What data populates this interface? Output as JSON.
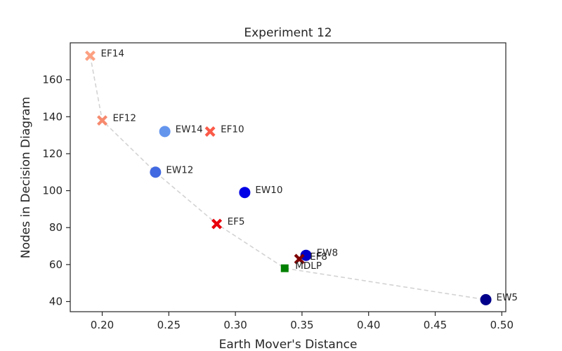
{
  "chart_data": {
    "type": "scatter",
    "title": "Experiment 12",
    "xlabel": "Earth Mover's Distance",
    "ylabel": "Nodes in Decision Diagram",
    "xlim": [
      0.176,
      0.503
    ],
    "ylim": [
      34.5,
      180
    ],
    "xticks": [
      0.2,
      0.25,
      0.3,
      0.35,
      0.4,
      0.45,
      0.5
    ],
    "xtick_labels": [
      "0.20",
      "0.25",
      "0.30",
      "0.35",
      "0.40",
      "0.45",
      "0.50"
    ],
    "yticks": [
      40,
      60,
      80,
      100,
      120,
      140,
      160
    ],
    "ytick_labels": [
      "40",
      "60",
      "80",
      "100",
      "120",
      "140",
      "160"
    ],
    "grid": false,
    "points": [
      {
        "label": "EF14",
        "x": 0.191,
        "y": 173,
        "marker": "x",
        "color": "#fca082"
      },
      {
        "label": "EF12",
        "x": 0.2,
        "y": 138,
        "marker": "x",
        "color": "#f68a6e"
      },
      {
        "label": "EW14",
        "x": 0.247,
        "y": 132,
        "marker": "circle",
        "color": "#6495ed"
      },
      {
        "label": "EF10",
        "x": 0.281,
        "y": 132,
        "marker": "x",
        "color": "#fb5a48"
      },
      {
        "label": "EW12",
        "x": 0.24,
        "y": 110,
        "marker": "circle",
        "color": "#4169e1"
      },
      {
        "label": "EW10",
        "x": 0.307,
        "y": 99,
        "marker": "circle",
        "color": "#0000e6"
      },
      {
        "label": "EF5",
        "x": 0.286,
        "y": 82,
        "marker": "x",
        "color": "#e8000b"
      },
      {
        "label": "EW8",
        "x": 0.353,
        "y": 65,
        "marker": "circle",
        "color": "#0000c8"
      },
      {
        "label": "EF8",
        "x": 0.348,
        "y": 63,
        "marker": "x",
        "color": "#7f0000"
      },
      {
        "label": "MDLP",
        "x": 0.337,
        "y": 58,
        "marker": "square",
        "color": "#008000"
      },
      {
        "label": "EW5",
        "x": 0.488,
        "y": 41,
        "marker": "circle",
        "color": "#00008b"
      }
    ],
    "pareto_front": [
      {
        "x": 0.191,
        "y": 173
      },
      {
        "x": 0.2,
        "y": 138
      },
      {
        "x": 0.24,
        "y": 110
      },
      {
        "x": 0.286,
        "y": 82
      },
      {
        "x": 0.337,
        "y": 58
      },
      {
        "x": 0.488,
        "y": 41
      }
    ],
    "pareto_color": "#d3d3d3"
  }
}
